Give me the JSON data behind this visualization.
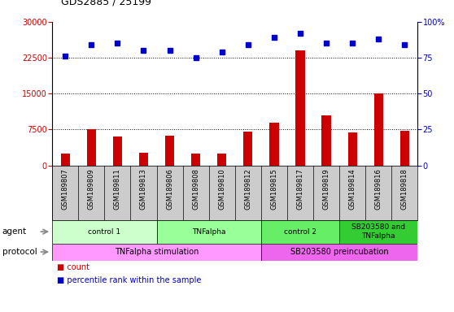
{
  "title": "GDS2885 / 25199",
  "samples": [
    "GSM189807",
    "GSM189809",
    "GSM189811",
    "GSM189813",
    "GSM189806",
    "GSM189808",
    "GSM189810",
    "GSM189812",
    "GSM189815",
    "GSM189817",
    "GSM189819",
    "GSM189814",
    "GSM189816",
    "GSM189818"
  ],
  "counts": [
    2500,
    7500,
    6000,
    2700,
    6200,
    2500,
    2500,
    7000,
    9000,
    24000,
    10500,
    6800,
    15000,
    7200
  ],
  "percentile_ranks": [
    76,
    84,
    85,
    80,
    80,
    75,
    79,
    84,
    89,
    92,
    85,
    85,
    88,
    84
  ],
  "bar_color": "#cc0000",
  "dot_color": "#0000cc",
  "ylim_left": [
    0,
    30000
  ],
  "ylim_right": [
    0,
    100
  ],
  "yticks_left": [
    0,
    7500,
    15000,
    22500,
    30000
  ],
  "yticks_right": [
    0,
    25,
    50,
    75,
    100
  ],
  "agent_groups": [
    {
      "label": "control 1",
      "start": 0,
      "end": 4,
      "color": "#ccffcc"
    },
    {
      "label": "TNFalpha",
      "start": 4,
      "end": 8,
      "color": "#99ff99"
    },
    {
      "label": "control 2",
      "start": 8,
      "end": 11,
      "color": "#66ee66"
    },
    {
      "label": "SB203580 and\nTNFalpha",
      "start": 11,
      "end": 14,
      "color": "#33cc33"
    }
  ],
  "protocol_groups": [
    {
      "label": "TNFalpha stimulation",
      "start": 0,
      "end": 8,
      "color": "#ff99ff"
    },
    {
      "label": "SB203580 preincubation",
      "start": 8,
      "end": 14,
      "color": "#ee66ee"
    }
  ],
  "agent_label": "agent",
  "protocol_label": "protocol",
  "legend_count_color": "#cc0000",
  "legend_pct_color": "#0000cc",
  "xtick_bg_color": "#cccccc",
  "bar_width": 0.35
}
